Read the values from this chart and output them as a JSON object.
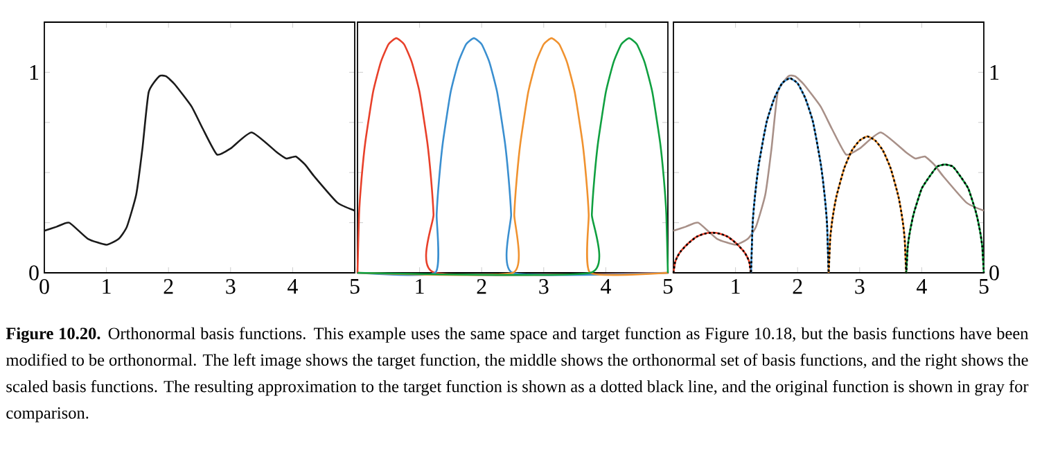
{
  "chart_data": [
    {
      "type": "line",
      "xlim": [
        0,
        5
      ],
      "ylim": [
        0,
        1.25
      ],
      "xticks": [
        0,
        1,
        2,
        3,
        4,
        5
      ],
      "yticks": [
        0,
        {
          "value": 0.25,
          "label": null
        },
        {
          "value": 0.5,
          "label": null
        },
        {
          "value": 0.75,
          "label": null
        },
        1
      ],
      "series": [
        {
          "color": "#1a1a1a",
          "x": [
            0,
            0.2,
            0.4,
            0.7,
            1.0,
            1.2,
            1.33,
            1.48,
            1.58,
            1.68,
            1.85,
            1.96,
            2.1,
            2.37,
            2.55,
            2.78,
            3.0,
            3.34,
            3.75,
            3.9,
            4.05,
            4.2,
            4.35,
            4.72,
            5
          ],
          "values": [
            0.21,
            0.23,
            0.25,
            0.17,
            0.14,
            0.17,
            0.23,
            0.39,
            0.62,
            0.9,
            0.98,
            0.98,
            0.94,
            0.83,
            0.72,
            0.59,
            0.62,
            0.7,
            0.6,
            0.57,
            0.58,
            0.54,
            0.48,
            0.35,
            0.31
          ]
        }
      ],
      "annotations": [
        "**Figure 10.20.** Orthonormal basis functions. This example uses the same space and target function as Figure 10.18, but the basis functions have been modified to be orthonormal. The left image shows the target function, the middle shows the orthonormal set of basis functions, and the right shows the scaled basis functions. The resulting approximation to the target function is shown as a dotted black line, and the original function is shown in gray for comparison."
      ]
    },
    {
      "type": "line",
      "xlim": [
        0,
        5
      ],
      "ylim": [
        0,
        1.25
      ],
      "xticks": [
        {
          "value": 0,
          "label": null
        },
        1,
        2,
        3,
        4,
        5
      ],
      "yticks": [
        0,
        {
          "value": 0.25,
          "label": null
        },
        {
          "value": 0.5,
          "label": null
        },
        {
          "value": 0.75,
          "label": null
        },
        1
      ],
      "tick_labels": "x",
      "series": [
        {
          "color": "#e8402a",
          "x": [
            0,
            0.025,
            0.0625,
            0.125,
            0.25,
            0.375,
            0.5,
            0.625,
            0.75,
            0.875,
            1,
            1.125,
            1.1875,
            1.225,
            1.25,
            5
          ],
          "values": [
            0,
            0.29,
            0.46,
            0.65,
            0.9,
            1.05,
            1.14,
            1.17,
            1.14,
            1.05,
            0.9,
            0.65,
            0.46,
            0.29,
            0,
            0
          ]
        },
        {
          "color": "#3a8fd0",
          "x": [
            0,
            1.25,
            1.275,
            1.3125,
            1.375,
            1.5,
            1.625,
            1.75,
            1.875,
            2,
            2.125,
            2.25,
            2.375,
            2.4375,
            2.475,
            2.5,
            5
          ],
          "values": [
            0,
            0,
            0.29,
            0.46,
            0.65,
            0.9,
            1.05,
            1.14,
            1.17,
            1.14,
            1.05,
            0.9,
            0.65,
            0.46,
            0.29,
            0,
            0
          ]
        },
        {
          "color": "#f0922f",
          "x": [
            0,
            2.5,
            2.525,
            2.5625,
            2.625,
            2.75,
            2.875,
            3,
            3.125,
            3.25,
            3.375,
            3.5,
            3.625,
            3.6875,
            3.725,
            3.75,
            5
          ],
          "values": [
            0,
            0,
            0.29,
            0.46,
            0.65,
            0.9,
            1.05,
            1.14,
            1.17,
            1.14,
            1.05,
            0.9,
            0.65,
            0.46,
            0.29,
            0,
            0
          ]
        },
        {
          "color": "#10a040",
          "x": [
            0,
            3.75,
            3.775,
            3.8125,
            3.875,
            4,
            4.125,
            4.25,
            4.375,
            4.5,
            4.625,
            4.75,
            4.875,
            4.9375,
            4.975,
            5
          ],
          "values": [
            0,
            0,
            0.29,
            0.46,
            0.65,
            0.9,
            1.05,
            1.14,
            1.17,
            1.14,
            1.05,
            0.9,
            0.65,
            0.46,
            0.29,
            0
          ]
        }
      ]
    },
    {
      "type": "line",
      "xlim": [
        0,
        5
      ],
      "y2lim": [
        0,
        1.25
      ],
      "xticks": [
        {
          "value": 0,
          "label": null
        },
        1,
        2,
        3,
        4,
        5
      ],
      "y2ticks": [
        0,
        {
          "value": 0.25,
          "label": null
        },
        {
          "value": 0.5,
          "label": null
        },
        {
          "value": 0.75,
          "label": null
        },
        1
      ],
      "series": [
        {
          "axis": "y2",
          "color": "#a89088",
          "x": [
            0,
            0.2,
            0.4,
            0.7,
            1.0,
            1.2,
            1.33,
            1.48,
            1.58,
            1.68,
            1.85,
            1.96,
            2.1,
            2.37,
            2.55,
            2.78,
            3.0,
            3.34,
            3.75,
            3.9,
            4.05,
            4.2,
            4.35,
            4.72,
            5
          ],
          "values": [
            0.21,
            0.23,
            0.25,
            0.17,
            0.14,
            0.17,
            0.23,
            0.39,
            0.62,
            0.9,
            0.98,
            0.98,
            0.94,
            0.83,
            0.72,
            0.59,
            0.62,
            0.7,
            0.6,
            0.57,
            0.58,
            0.54,
            0.48,
            0.35,
            0.31
          ]
        },
        {
          "axis": "y2",
          "color": "#e8402a",
          "x": [
            0,
            0.025,
            0.0625,
            0.125,
            0.25,
            0.375,
            0.5,
            0.625,
            0.75,
            0.875,
            1,
            1.125,
            1.1875,
            1.225,
            1.25
          ],
          "values": [
            0,
            0.05,
            0.08,
            0.11,
            0.15,
            0.18,
            0.195,
            0.2,
            0.195,
            0.18,
            0.15,
            0.11,
            0.08,
            0.05,
            0
          ]
        },
        {
          "axis": "y2",
          "color": "#3a8fd0",
          "x": [
            1.25,
            1.275,
            1.3125,
            1.375,
            1.5,
            1.625,
            1.75,
            1.875,
            2,
            2.125,
            2.25,
            2.375,
            2.4375,
            2.475,
            2.5
          ],
          "values": [
            0,
            0.24,
            0.38,
            0.54,
            0.75,
            0.87,
            0.945,
            0.97,
            0.945,
            0.87,
            0.75,
            0.54,
            0.38,
            0.24,
            0
          ]
        },
        {
          "axis": "y2",
          "color": "#f0922f",
          "x": [
            2.5,
            2.525,
            2.5625,
            2.625,
            2.75,
            2.875,
            3,
            3.125,
            3.25,
            3.375,
            3.5,
            3.625,
            3.6875,
            3.725,
            3.75
          ],
          "values": [
            0,
            0.17,
            0.27,
            0.38,
            0.52,
            0.61,
            0.66,
            0.68,
            0.66,
            0.61,
            0.52,
            0.38,
            0.27,
            0.17,
            0
          ]
        },
        {
          "axis": "y2",
          "color": "#10a040",
          "x": [
            3.75,
            3.775,
            3.8125,
            3.875,
            4,
            4.125,
            4.25,
            4.375,
            4.5,
            4.625,
            4.75,
            4.875,
            4.9375,
            4.975,
            5
          ],
          "values": [
            0,
            0.13,
            0.21,
            0.3,
            0.42,
            0.48,
            0.53,
            0.54,
            0.53,
            0.48,
            0.42,
            0.3,
            0.21,
            0.13,
            0
          ]
        },
        {
          "axis": "y2",
          "color": "#000000",
          "line_style": "dotted",
          "x": [
            0,
            0.025,
            0.0625,
            0.125,
            0.25,
            0.375,
            0.5,
            0.625,
            0.75,
            0.875,
            1,
            1.125,
            1.1875,
            1.225,
            1.25,
            1.275,
            1.3125,
            1.375,
            1.5,
            1.625,
            1.75,
            1.875,
            2,
            2.125,
            2.25,
            2.375,
            2.4375,
            2.475,
            2.5,
            2.525,
            2.5625,
            2.625,
            2.75,
            2.875,
            3,
            3.125,
            3.25,
            3.375,
            3.5,
            3.625,
            3.6875,
            3.725,
            3.75,
            3.775,
            3.8125,
            3.875,
            4,
            4.125,
            4.25,
            4.375,
            4.5,
            4.625,
            4.75,
            4.875,
            4.9375,
            4.975,
            5
          ],
          "values": [
            0,
            0.05,
            0.08,
            0.11,
            0.15,
            0.18,
            0.195,
            0.2,
            0.195,
            0.18,
            0.15,
            0.11,
            0.08,
            0.05,
            0,
            0.24,
            0.38,
            0.54,
            0.75,
            0.87,
            0.945,
            0.97,
            0.945,
            0.87,
            0.75,
            0.54,
            0.38,
            0.24,
            0,
            0.17,
            0.27,
            0.38,
            0.52,
            0.61,
            0.66,
            0.68,
            0.66,
            0.61,
            0.52,
            0.38,
            0.27,
            0.17,
            0,
            0.13,
            0.21,
            0.3,
            0.42,
            0.48,
            0.53,
            0.54,
            0.53,
            0.48,
            0.42,
            0.3,
            0.21,
            0.13,
            0
          ]
        }
      ]
    }
  ]
}
